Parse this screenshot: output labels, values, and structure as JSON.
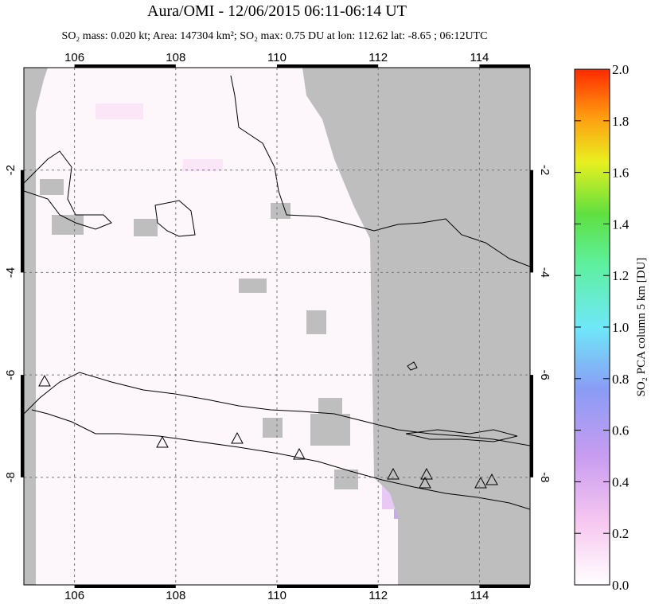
{
  "header": {
    "title": "Aura/OMI - 12/06/2015 06:11-06:14 UT",
    "subtitle": "SO₂ mass: 0.020 kt; Area: 147304 km²; SO₂ max: 0.75 DU at lon: 112.62 lat: -8.65 ; 06:12UTC"
  },
  "map": {
    "lon_lim": [
      105,
      115
    ],
    "lat_lim": [
      0,
      -10.1
    ],
    "lon_ticks": [
      106,
      108,
      110,
      112,
      114
    ],
    "lat_ticks": [
      -2,
      -4,
      -6,
      -8
    ]
  },
  "colorbar": {
    "label": "SO₂ PCA column 5 km [DU]",
    "lim": [
      0,
      2
    ],
    "ticks": [
      {
        "value": 0,
        "label": "0.0"
      },
      {
        "value": 0.2,
        "label": "0.2"
      },
      {
        "value": 0.4,
        "label": "0.4"
      },
      {
        "value": 0.6,
        "label": "0.6"
      },
      {
        "value": 0.8,
        "label": "0.8"
      },
      {
        "value": 1,
        "label": "1.0"
      },
      {
        "value": 1.2,
        "label": "1.2"
      },
      {
        "value": 1.4,
        "label": "1.4"
      },
      {
        "value": 1.6,
        "label": "1.6"
      },
      {
        "value": 1.8,
        "label": "1.8"
      },
      {
        "value": 2,
        "label": "2.0"
      }
    ]
  }
}
